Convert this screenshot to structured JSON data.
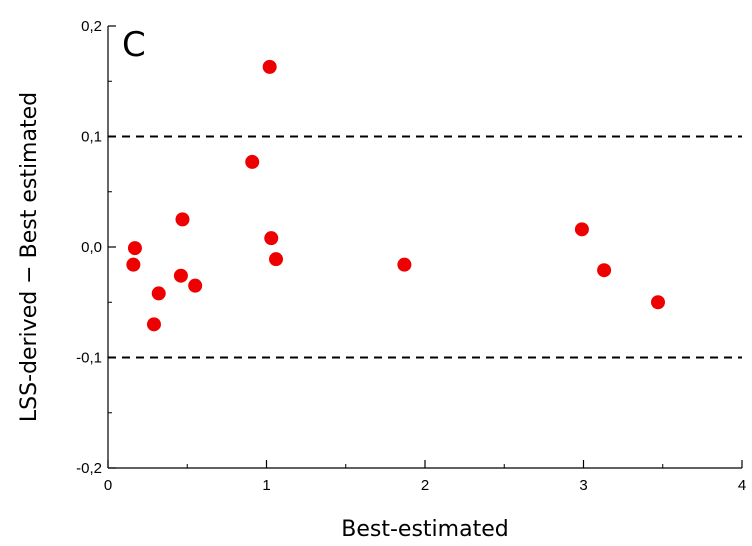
{
  "chart_data": {
    "type": "scatter",
    "title": "",
    "panel_label": "C",
    "xlabel": "Best-estimated",
    "ylabel": "LSS-derived − Best estimated",
    "xlim": [
      0,
      4
    ],
    "ylim": [
      -0.2,
      0.2
    ],
    "x_ticks": [
      {
        "value": 0,
        "label": "0"
      },
      {
        "value": 1,
        "label": "1"
      },
      {
        "value": 2,
        "label": "2"
      },
      {
        "value": 3,
        "label": "3"
      },
      {
        "value": 4,
        "label": "4"
      }
    ],
    "y_ticks": [
      {
        "value": -0.2,
        "label": "-0,2"
      },
      {
        "value": -0.1,
        "label": "-0,1"
      },
      {
        "value": 0.0,
        "label": "0,0"
      },
      {
        "value": 0.1,
        "label": "0,1"
      },
      {
        "value": 0.2,
        "label": "0,2"
      }
    ],
    "reference_lines": [
      0.1,
      -0.1
    ],
    "grid": false,
    "marker_color": "#ee0000",
    "points": [
      {
        "x": 0.16,
        "y": -0.016
      },
      {
        "x": 0.17,
        "y": -0.001
      },
      {
        "x": 0.29,
        "y": -0.07
      },
      {
        "x": 0.32,
        "y": -0.042
      },
      {
        "x": 0.46,
        "y": -0.026
      },
      {
        "x": 0.47,
        "y": 0.025
      },
      {
        "x": 0.55,
        "y": -0.035
      },
      {
        "x": 0.91,
        "y": 0.077
      },
      {
        "x": 1.02,
        "y": 0.163
      },
      {
        "x": 1.03,
        "y": 0.008
      },
      {
        "x": 1.06,
        "y": -0.011
      },
      {
        "x": 1.87,
        "y": -0.016
      },
      {
        "x": 2.99,
        "y": 0.016
      },
      {
        "x": 3.13,
        "y": -0.021
      },
      {
        "x": 3.47,
        "y": -0.05
      }
    ]
  }
}
